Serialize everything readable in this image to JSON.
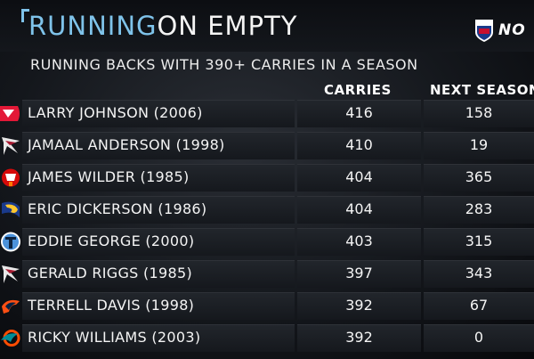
{
  "title": {
    "part1": "RUNNING",
    "part2": "ON EMPTY"
  },
  "brand": {
    "text": "NO"
  },
  "subtitle": "RUNNING BACKS WITH 390+ CARRIES IN A SEASON",
  "columns": {
    "carries": "CARRIES",
    "next": "NEXT SEASON"
  },
  "rows": [
    {
      "name": "LARRY JOHNSON (2006)",
      "carries": "416",
      "next": "158",
      "logo": "chiefs-logo"
    },
    {
      "name": "JAMAAL ANDERSON (1998)",
      "carries": "410",
      "next": "19",
      "logo": "falcons-logo"
    },
    {
      "name": "JAMES WILDER (1985)",
      "carries": "404",
      "next": "365",
      "logo": "buccaneers-logo"
    },
    {
      "name": "ERIC DICKERSON (1986)",
      "carries": "404",
      "next": "283",
      "logo": "rams-logo"
    },
    {
      "name": "EDDIE GEORGE (2000)",
      "carries": "403",
      "next": "315",
      "logo": "titans-logo"
    },
    {
      "name": "GERALD RIGGS (1985)",
      "carries": "397",
      "next": "343",
      "logo": "falcons-logo"
    },
    {
      "name": "TERRELL DAVIS (1998)",
      "carries": "392",
      "next": "67",
      "logo": "broncos-logo"
    },
    {
      "name": "RICKY WILLIAMS (2003)",
      "carries": "392",
      "next": "0",
      "logo": "dolphins-logo"
    }
  ],
  "colors": {
    "accent": "#7fc3ea",
    "text": "#f4f4f4",
    "background": "#14171c"
  }
}
